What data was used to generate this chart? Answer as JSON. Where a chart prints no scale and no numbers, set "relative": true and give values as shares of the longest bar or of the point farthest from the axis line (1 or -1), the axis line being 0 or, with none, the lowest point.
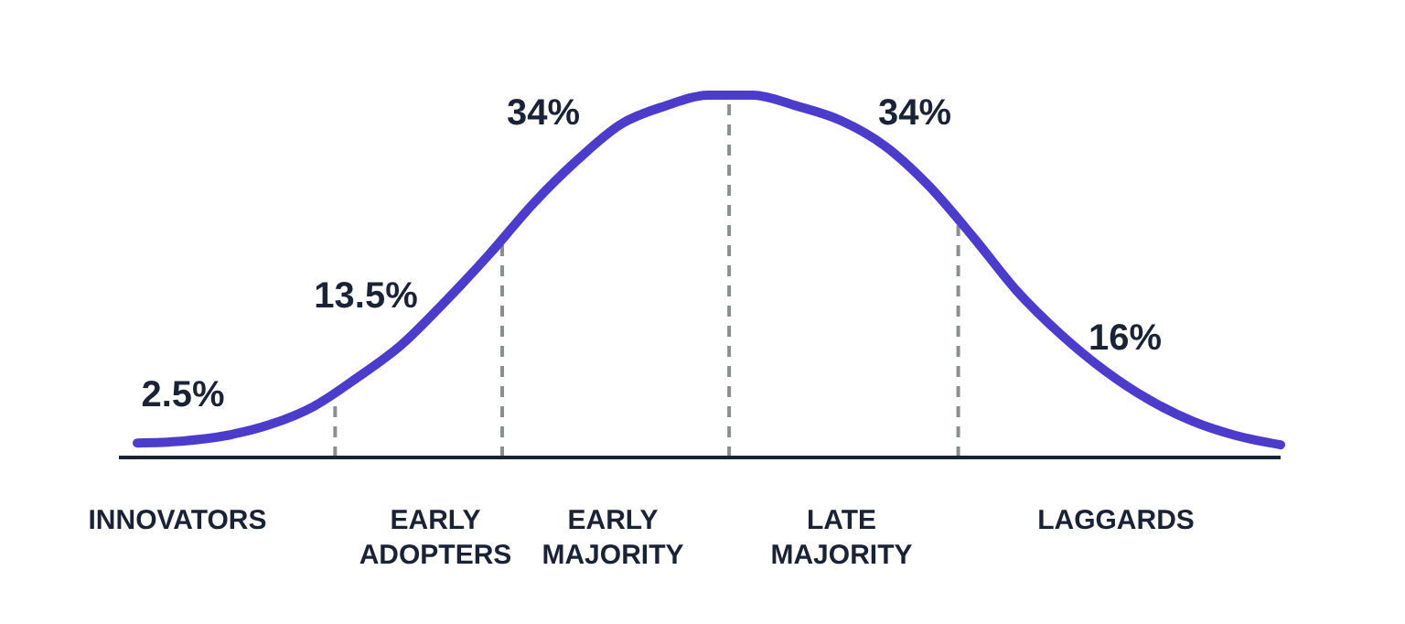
{
  "chart_data": {
    "type": "line",
    "relative": true,
    "categories": [
      null,
      null,
      null,
      null,
      null,
      null,
      null,
      null,
      null,
      null,
      null,
      null,
      null,
      null,
      null,
      null,
      null,
      null,
      null,
      null,
      null,
      null,
      null,
      null,
      null,
      null,
      null
    ],
    "series": [
      {
        "color": "#4b3ccc",
        "values": [
          0.04,
          0.045,
          0.06,
          0.09,
          0.14,
          0.22,
          0.31,
          0.43,
          0.56,
          0.7,
          0.82,
          0.92,
          0.97,
          1.0,
          1.0,
          0.97,
          0.93,
          0.86,
          0.75,
          0.61,
          0.46,
          0.34,
          0.24,
          0.16,
          0.1,
          0.06,
          0.035
        ]
      }
    ],
    "annotations": [
      "2.5%",
      "13.5%",
      "34%",
      "34%",
      "16%",
      "INNOVATORS",
      "EARLY ADOPTERS",
      "EARLY MAJORITY",
      "LATE MAJORITY",
      "LAGGARDS"
    ],
    "marker": "none",
    "line_style": "solid"
  }
}
